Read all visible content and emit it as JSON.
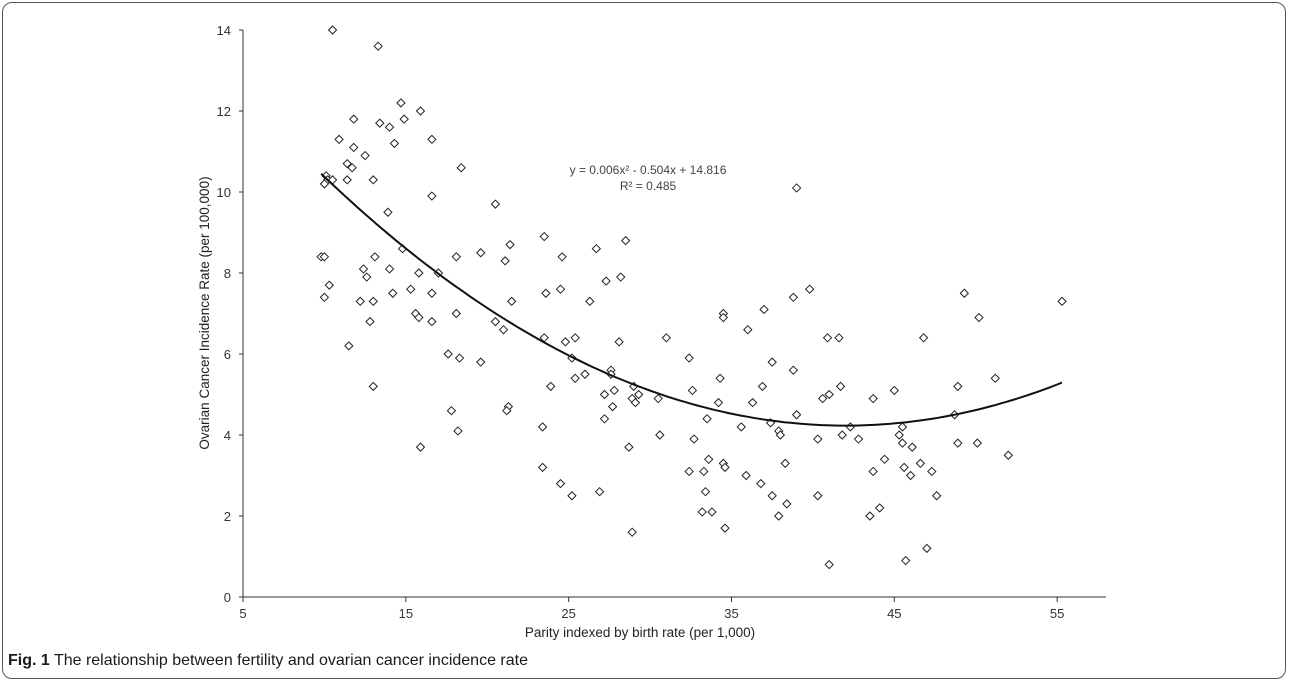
{
  "caption": {
    "label": "Fig. 1",
    "text": " The relationship between fertility and ovarian cancer incidence rate"
  },
  "chart_data": {
    "type": "scatter",
    "xlabel": "Parity indexed by birth rate (per 1,000)",
    "ylabel": "Ovarian Cancer Incidence Rate (per 100,000)",
    "xlim": [
      5,
      58
    ],
    "ylim": [
      0,
      14
    ],
    "xticks": [
      5,
      15,
      25,
      35,
      45,
      55
    ],
    "yticks": [
      0,
      2,
      4,
      6,
      8,
      10,
      12,
      14
    ],
    "grid": false,
    "marker": "diamond-open",
    "trendline": {
      "type": "polynomial",
      "coefficients": [
        0.006,
        -0.504,
        14.816
      ],
      "x_range": [
        9.8,
        55.3
      ],
      "equation": "y = 0.006x² - 0.504x + 14.816",
      "r_squared": "R² = 0.485"
    },
    "points": [
      [
        10.5,
        14.0
      ],
      [
        13.3,
        13.6
      ],
      [
        14.7,
        12.2
      ],
      [
        15.9,
        12.0
      ],
      [
        14.9,
        11.8
      ],
      [
        11.8,
        11.8
      ],
      [
        13.4,
        11.7
      ],
      [
        14.0,
        11.6
      ],
      [
        10.9,
        11.3
      ],
      [
        16.6,
        11.3
      ],
      [
        14.3,
        11.2
      ],
      [
        11.8,
        11.1
      ],
      [
        12.5,
        10.9
      ],
      [
        11.4,
        10.7
      ],
      [
        11.7,
        10.6
      ],
      [
        18.4,
        10.6
      ],
      [
        10.1,
        10.4
      ],
      [
        10.2,
        10.3
      ],
      [
        10.5,
        10.3
      ],
      [
        11.4,
        10.3
      ],
      [
        13.0,
        10.3
      ],
      [
        10.0,
        10.2
      ],
      [
        16.6,
        9.9
      ],
      [
        20.5,
        9.7
      ],
      [
        13.9,
        9.5
      ],
      [
        23.5,
        8.9
      ],
      [
        28.5,
        8.8
      ],
      [
        21.4,
        8.7
      ],
      [
        14.8,
        8.6
      ],
      [
        26.7,
        8.6
      ],
      [
        19.6,
        8.5
      ],
      [
        9.8,
        8.4
      ],
      [
        10.0,
        8.4
      ],
      [
        13.1,
        8.4
      ],
      [
        18.1,
        8.4
      ],
      [
        24.6,
        8.4
      ],
      [
        21.1,
        8.3
      ],
      [
        12.4,
        8.1
      ],
      [
        14.0,
        8.1
      ],
      [
        15.8,
        8.0
      ],
      [
        17.0,
        8.0
      ],
      [
        12.6,
        7.9
      ],
      [
        28.2,
        7.9
      ],
      [
        27.3,
        7.8
      ],
      [
        10.3,
        7.7
      ],
      [
        15.3,
        7.6
      ],
      [
        24.5,
        7.6
      ],
      [
        16.6,
        7.5
      ],
      [
        14.2,
        7.5
      ],
      [
        23.6,
        7.5
      ],
      [
        49.3,
        7.5
      ],
      [
        10.0,
        7.4
      ],
      [
        38.8,
        7.4
      ],
      [
        12.2,
        7.3
      ],
      [
        13.0,
        7.3
      ],
      [
        21.5,
        7.3
      ],
      [
        26.3,
        7.3
      ],
      [
        55.3,
        7.3
      ],
      [
        37.0,
        7.1
      ],
      [
        15.6,
        7.0
      ],
      [
        18.1,
        7.0
      ],
      [
        34.5,
        7.0
      ],
      [
        15.8,
        6.9
      ],
      [
        34.5,
        6.9
      ],
      [
        50.2,
        6.9
      ],
      [
        12.8,
        6.8
      ],
      [
        16.6,
        6.8
      ],
      [
        20.5,
        6.8
      ],
      [
        21.0,
        6.6
      ],
      [
        36.0,
        6.6
      ],
      [
        23.5,
        6.4
      ],
      [
        25.4,
        6.4
      ],
      [
        31.0,
        6.4
      ],
      [
        40.9,
        6.4
      ],
      [
        41.6,
        6.4
      ],
      [
        46.8,
        6.4
      ],
      [
        24.8,
        6.3
      ],
      [
        28.1,
        6.3
      ],
      [
        11.5,
        6.2
      ],
      [
        17.6,
        6.0
      ],
      [
        18.3,
        5.9
      ],
      [
        25.2,
        5.9
      ],
      [
        32.4,
        5.9
      ],
      [
        38.8,
        5.6
      ],
      [
        19.6,
        5.8
      ],
      [
        37.5,
        5.8
      ],
      [
        27.6,
        5.6
      ],
      [
        26.0,
        5.5
      ],
      [
        27.6,
        5.5
      ],
      [
        34.3,
        5.4
      ],
      [
        51.2,
        5.4
      ],
      [
        25.4,
        5.4
      ],
      [
        23.9,
        5.2
      ],
      [
        29.0,
        5.2
      ],
      [
        36.9,
        5.2
      ],
      [
        41.7,
        5.2
      ],
      [
        48.9,
        5.2
      ],
      [
        13.0,
        5.2
      ],
      [
        27.8,
        5.1
      ],
      [
        32.6,
        5.1
      ],
      [
        45.0,
        5.1
      ],
      [
        27.2,
        5.0
      ],
      [
        29.3,
        5.0
      ],
      [
        41.0,
        5.0
      ],
      [
        28.9,
        4.9
      ],
      [
        30.5,
        4.9
      ],
      [
        40.6,
        4.9
      ],
      [
        43.7,
        4.9
      ],
      [
        29.1,
        4.8
      ],
      [
        34.2,
        4.8
      ],
      [
        36.3,
        4.8
      ],
      [
        27.7,
        4.7
      ],
      [
        21.3,
        4.7
      ],
      [
        21.2,
        4.6
      ],
      [
        17.8,
        4.6
      ],
      [
        39.0,
        4.5
      ],
      [
        48.7,
        4.5
      ],
      [
        27.2,
        4.4
      ],
      [
        33.5,
        4.4
      ],
      [
        37.4,
        4.3
      ],
      [
        23.4,
        4.2
      ],
      [
        35.6,
        4.2
      ],
      [
        37.9,
        4.1
      ],
      [
        42.3,
        4.2
      ],
      [
        45.5,
        4.2
      ],
      [
        18.2,
        4.1
      ],
      [
        38.0,
        4.0
      ],
      [
        41.8,
        4.0
      ],
      [
        45.3,
        4.0
      ],
      [
        30.6,
        4.0
      ],
      [
        32.7,
        3.9
      ],
      [
        40.3,
        3.9
      ],
      [
        42.8,
        3.9
      ],
      [
        48.9,
        3.8
      ],
      [
        50.1,
        3.8
      ],
      [
        45.5,
        3.8
      ],
      [
        15.9,
        3.7
      ],
      [
        28.7,
        3.7
      ],
      [
        46.1,
        3.7
      ],
      [
        52.0,
        3.5
      ],
      [
        33.6,
        3.4
      ],
      [
        44.4,
        3.4
      ],
      [
        34.5,
        3.3
      ],
      [
        38.3,
        3.3
      ],
      [
        46.6,
        3.3
      ],
      [
        23.4,
        3.2
      ],
      [
        34.6,
        3.2
      ],
      [
        45.6,
        3.2
      ],
      [
        32.4,
        3.1
      ],
      [
        33.3,
        3.1
      ],
      [
        43.7,
        3.1
      ],
      [
        47.3,
        3.1
      ],
      [
        35.9,
        3.0
      ],
      [
        46.0,
        3.0
      ],
      [
        36.8,
        2.8
      ],
      [
        24.5,
        2.8
      ],
      [
        26.9,
        2.6
      ],
      [
        33.4,
        2.6
      ],
      [
        25.2,
        2.5
      ],
      [
        37.5,
        2.5
      ],
      [
        40.3,
        2.5
      ],
      [
        47.6,
        2.5
      ],
      [
        38.4,
        2.3
      ],
      [
        44.1,
        2.2
      ],
      [
        33.2,
        2.1
      ],
      [
        33.8,
        2.1
      ],
      [
        37.9,
        2.0
      ],
      [
        43.5,
        2.0
      ],
      [
        34.6,
        1.7
      ],
      [
        28.9,
        1.6
      ],
      [
        47.0,
        1.2
      ],
      [
        45.7,
        0.9
      ],
      [
        41.0,
        0.8
      ],
      [
        39.0,
        10.1
      ],
      [
        39.8,
        7.6
      ]
    ]
  }
}
